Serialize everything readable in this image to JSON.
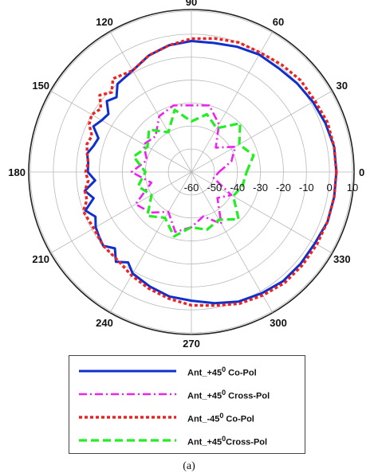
{
  "chart_data": {
    "type": "polar-line",
    "title": "",
    "angular_axis": {
      "unit": "degrees",
      "tick_labels": [
        "0",
        "30",
        "60",
        "90",
        "120",
        "150",
        "180",
        "210",
        "240",
        "270",
        "300",
        "330"
      ],
      "tick_values": [
        0,
        30,
        60,
        90,
        120,
        150,
        180,
        210,
        240,
        270,
        300,
        330
      ]
    },
    "radial_axis": {
      "range": [
        -60,
        10
      ],
      "tick_labels": [
        "-60",
        "-50",
        "-40",
        "-30",
        "-20",
        "-10",
        "0",
        "10"
      ],
      "tick_values": [
        -60,
        -50,
        -40,
        -30,
        -20,
        -10,
        0,
        10
      ]
    },
    "grid": true,
    "legend_placement": "bottom",
    "caption": "(a)",
    "series": [
      {
        "name": "Ant_+45⁰ Co-Pol",
        "legend_base": "Ant_+45",
        "legend_sup": "0",
        "legend_suffix": " Co-Pol",
        "color": "#1030cc",
        "dash": "solid",
        "theta": [
          0,
          10,
          20,
          30,
          40,
          50,
          60,
          70,
          80,
          90,
          100,
          110,
          120,
          130,
          135,
          140,
          145,
          150,
          155,
          160,
          165,
          170,
          175,
          180,
          185,
          190,
          195,
          200,
          205,
          210,
          215,
          220,
          225,
          230,
          235,
          240,
          250,
          260,
          270,
          280,
          290,
          300,
          310,
          320,
          330,
          340,
          350
        ],
        "r": [
          3,
          3,
          2,
          1,
          0,
          -1,
          -1,
          -2,
          -3,
          -3,
          -4,
          -6,
          -9,
          -10,
          -14,
          -12,
          -16,
          -15,
          -13,
          -17,
          -16,
          -14,
          -15,
          -15,
          -18,
          -13,
          -16,
          -11,
          -14,
          -12,
          -11,
          -10,
          -13,
          -9,
          -12,
          -9,
          -7,
          -5,
          -4,
          -2,
          0,
          1,
          2,
          2,
          2,
          3,
          3
        ]
      },
      {
        "name": "Ant_+45⁰ Cross-Pol",
        "legend_base": "Ant_+45",
        "legend_sup": "0",
        "legend_suffix": " Cross-Pol",
        "color": "#ee22ee",
        "dash": "dashdot",
        "theta": [
          0,
          15,
          30,
          45,
          60,
          75,
          90,
          105,
          120,
          135,
          150,
          165,
          180,
          195,
          210,
          225,
          240,
          255,
          270,
          285,
          300,
          315,
          330,
          345
        ],
        "r": [
          -48,
          -42,
          -38,
          -45,
          -36,
          -30,
          -31,
          -30,
          -32,
          -38,
          -36,
          -40,
          -34,
          -42,
          -32,
          -35,
          -40,
          -33,
          -36,
          -40,
          -34,
          -44,
          -40,
          -50
        ]
      },
      {
        "name": "Ant_-45⁰ Co-Pol",
        "legend_base": "Ant_-45",
        "legend_sup": "0",
        "legend_suffix": " Co-Pol",
        "color": "#ee2222",
        "dash": "dotted",
        "theta": [
          0,
          10,
          20,
          30,
          40,
          50,
          60,
          70,
          80,
          90,
          100,
          110,
          120,
          130,
          135,
          140,
          145,
          150,
          155,
          160,
          165,
          170,
          175,
          180,
          185,
          190,
          195,
          200,
          210,
          220,
          230,
          240,
          250,
          260,
          270,
          280,
          290,
          300,
          310,
          320,
          330,
          340,
          350
        ],
        "r": [
          3,
          3,
          3,
          2,
          2,
          1,
          0,
          0,
          -1,
          -2,
          -4,
          -6,
          -9,
          -7,
          -11,
          -8,
          -12,
          -10,
          -11,
          -14,
          -13,
          -14,
          -15,
          -14,
          -15,
          -13,
          -13,
          -10,
          -11,
          -10,
          -10,
          -8,
          -6,
          -4,
          -2,
          -1,
          1,
          2,
          3,
          3,
          3,
          3,
          3
        ]
      },
      {
        "name": "Ant_+45⁰Cross-Pol",
        "legend_base": "Ant_+45",
        "legend_sup": "0",
        "legend_suffix": "Cross-Pol",
        "color": "#22ee22",
        "dash": "dashed",
        "theta": [
          0,
          15,
          30,
          45,
          60,
          75,
          90,
          105,
          120,
          135,
          150,
          165,
          180,
          195,
          210,
          225,
          240,
          255,
          270,
          285,
          300,
          315,
          330,
          345
        ],
        "r": [
          -36,
          -32,
          -36,
          -30,
          -38,
          -34,
          -38,
          -32,
          -40,
          -34,
          -38,
          -34,
          -40,
          -36,
          -40,
          -33,
          -37,
          -31,
          -36,
          -34,
          -36,
          -31,
          -39,
          -37
        ]
      }
    ]
  }
}
